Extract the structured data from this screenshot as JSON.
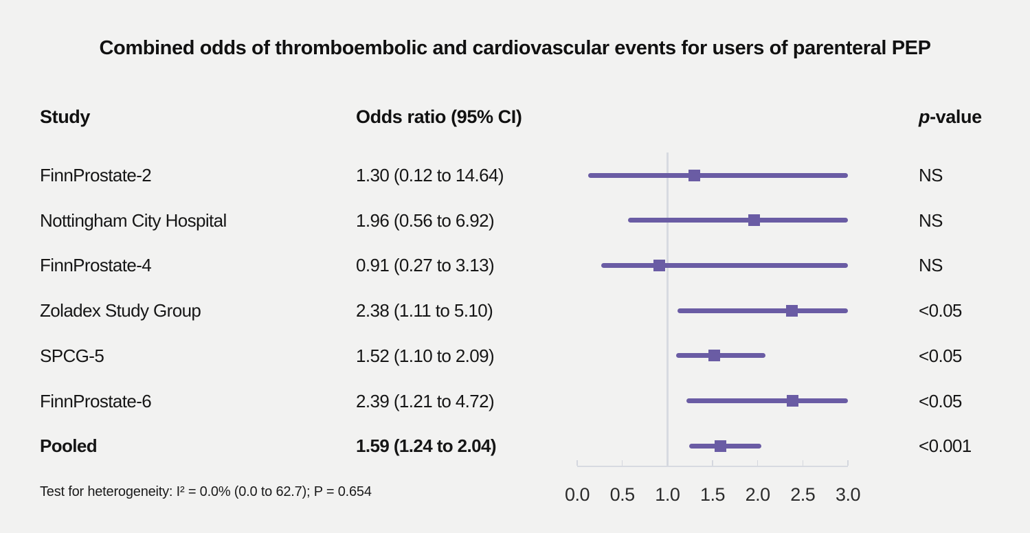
{
  "chart_data": {
    "type": "forest",
    "title": "Combined odds of thromboembolic and cardiovascular events for users of parenteral PEP",
    "columns": {
      "study": "Study",
      "odds_ratio": "Odds ratio (95% CI)",
      "p_italic": "p",
      "p_rest": "-value"
    },
    "rows": [
      {
        "study": "FinnProstate-2",
        "or_label": "1.30 (0.12 to 14.64)",
        "est": 1.3,
        "lo": 0.12,
        "hi": 14.64,
        "p": "NS",
        "bold": false
      },
      {
        "study": "Nottingham City Hospital",
        "or_label": "1.96 (0.56 to 6.92)",
        "est": 1.96,
        "lo": 0.56,
        "hi": 6.92,
        "p": "NS",
        "bold": false
      },
      {
        "study": "FinnProstate-4",
        "or_label": "0.91 (0.27 to 3.13)",
        "est": 0.91,
        "lo": 0.27,
        "hi": 3.13,
        "p": "NS",
        "bold": false
      },
      {
        "study": "Zoladex Study Group",
        "or_label": "2.38 (1.11 to 5.10)",
        "est": 2.38,
        "lo": 1.11,
        "hi": 5.1,
        "p": "<0.05",
        "bold": false
      },
      {
        "study": "SPCG-5",
        "or_label": "1.52 (1.10 to 2.09)",
        "est": 1.52,
        "lo": 1.1,
        "hi": 2.09,
        "p": "<0.05",
        "bold": false
      },
      {
        "study": "FinnProstate-6",
        "or_label": "2.39 (1.21 to 4.72)",
        "est": 2.39,
        "lo": 1.21,
        "hi": 4.72,
        "p": "<0.05",
        "bold": false
      },
      {
        "study": "Pooled",
        "or_label": "1.59 (1.24 to 2.04)",
        "est": 1.59,
        "lo": 1.24,
        "hi": 2.04,
        "p": "<0.001",
        "bold": true
      }
    ],
    "axis": {
      "min": 0.0,
      "max": 3.0,
      "ref": 1.0,
      "ticks": [
        "0.0",
        "0.5",
        "1.0",
        "1.5",
        "2.0",
        "2.5",
        "3.0"
      ]
    },
    "footnote": "Test for heterogeneity: I² = 0.0% (0.0 to 62.7); P = 0.654",
    "colors": {
      "marker": "#6a5ca4",
      "ref_line": "#d7dae1",
      "axis_line": "#d7dae1",
      "tick": "#d4d7de",
      "background": "#f2f2f1",
      "text": "#151515"
    }
  }
}
